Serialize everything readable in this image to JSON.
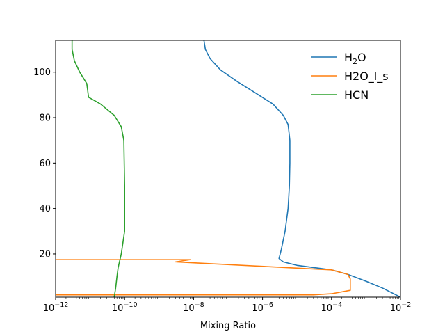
{
  "chart_data": {
    "type": "line",
    "xlabel": "Mixing Ratio",
    "ylabel": "",
    "xscale": "log",
    "xlim": [
      1e-12,
      0.01
    ],
    "ylim": [
      1,
      114
    ],
    "x_ticks": [
      {
        "value": 1e-12,
        "base": "10",
        "exp": "−12"
      },
      {
        "value": 1e-10,
        "base": "10",
        "exp": "−10"
      },
      {
        "value": 1e-08,
        "base": "10",
        "exp": "−8"
      },
      {
        "value": 1e-06,
        "base": "10",
        "exp": "−6"
      },
      {
        "value": 0.0001,
        "base": "10",
        "exp": "−4"
      },
      {
        "value": 0.01,
        "base": "10",
        "exp": "−2"
      }
    ],
    "y_ticks": [
      20,
      40,
      60,
      80,
      100
    ],
    "grid": false,
    "legend_position": "top-right",
    "series": [
      {
        "name": "H2O",
        "legend_main": "H",
        "legend_sub": "2",
        "legend_tail": "O",
        "color": "#1f77b4",
        "points": [
          [
            0.01,
            1
          ],
          [
            0.003,
            5
          ],
          [
            0.001,
            8
          ],
          [
            0.0003,
            11
          ],
          [
            0.0001,
            13
          ],
          [
            1e-05,
            15
          ],
          [
            4e-06,
            16.5
          ],
          [
            3e-06,
            18
          ],
          [
            3.5e-06,
            22
          ],
          [
            4.5e-06,
            30
          ],
          [
            5.5e-06,
            40
          ],
          [
            6e-06,
            50
          ],
          [
            6.2e-06,
            60
          ],
          [
            6.2e-06,
            70
          ],
          [
            5.5e-06,
            77
          ],
          [
            4e-06,
            81
          ],
          [
            2e-06,
            86
          ],
          [
            6e-07,
            91
          ],
          [
            1.8e-07,
            96
          ],
          [
            6e-08,
            101
          ],
          [
            3e-08,
            106
          ],
          [
            2.2e-08,
            110
          ],
          [
            2e-08,
            114
          ]
        ]
      },
      {
        "name": "H2O_l_s",
        "legend_main": "H2O_l_s",
        "legend_sub": "",
        "legend_tail": "",
        "color": "#ff7f0e",
        "points": [
          [
            1e-12,
            17.5
          ],
          [
            8e-09,
            17.5
          ],
          [
            3e-09,
            16.5
          ],
          [
            0.0001,
            13
          ],
          [
            0.0003,
            11
          ],
          [
            0.00035,
            9
          ],
          [
            0.00035,
            4
          ],
          [
            0.0001,
            2.5
          ],
          [
            3e-05,
            2
          ],
          [
            1e-12,
            2
          ]
        ]
      },
      {
        "name": "HCN",
        "legend_main": "HCN",
        "legend_sub": "",
        "legend_tail": "",
        "color": "#2ca02c",
        "points": [
          [
            5e-11,
            1
          ],
          [
            5.5e-11,
            5
          ],
          [
            6e-11,
            10
          ],
          [
            6.5e-11,
            14
          ],
          [
            8e-11,
            20
          ],
          [
            1e-10,
            30
          ],
          [
            1e-10,
            50
          ],
          [
            9.5e-11,
            70
          ],
          [
            8e-11,
            76
          ],
          [
            5e-11,
            81
          ],
          [
            2e-11,
            86
          ],
          [
            9e-12,
            89
          ],
          [
            8.5e-12,
            92
          ],
          [
            8e-12,
            95
          ],
          [
            5e-12,
            100
          ],
          [
            3.5e-12,
            105
          ],
          [
            3e-12,
            110
          ],
          [
            3e-12,
            114
          ]
        ]
      }
    ]
  }
}
